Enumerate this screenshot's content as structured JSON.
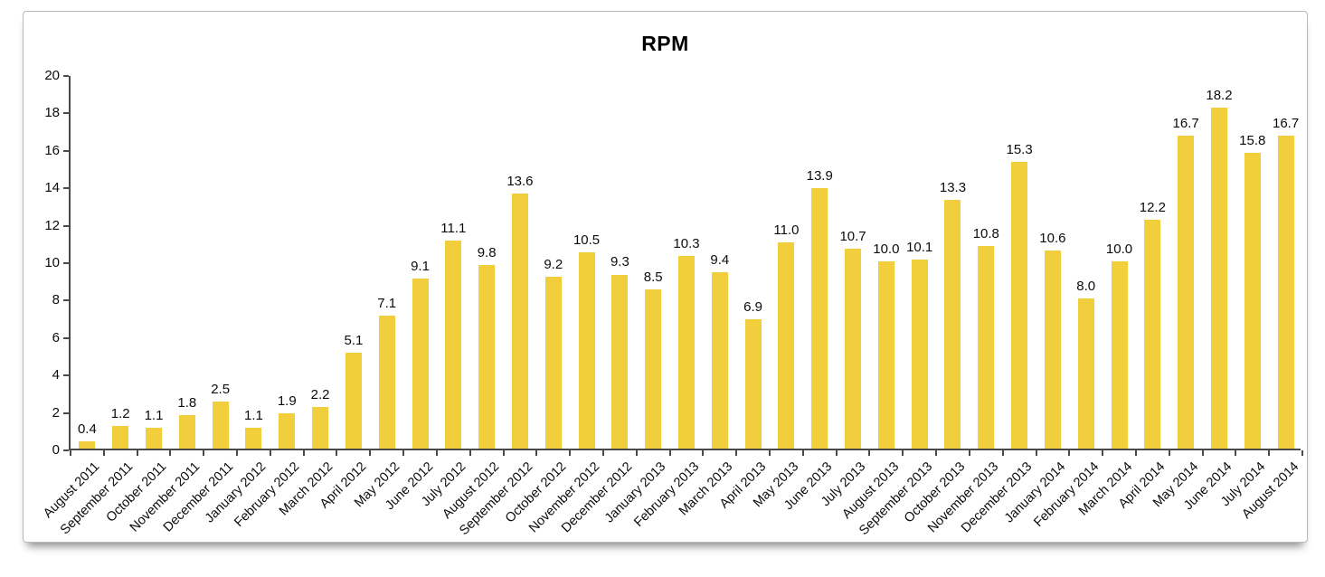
{
  "chart_data": {
    "type": "bar",
    "title": "RPM",
    "categories": [
      "August 2011",
      "September 2011",
      "October 2011",
      "November 2011",
      "December 2011",
      "January 2012",
      "February 2012",
      "March 2012",
      "April 2012",
      "May 2012",
      "June 2012",
      "July 2012",
      "August 2012",
      "September 2012",
      "October 2012",
      "November 2012",
      "December 2012",
      "January 2013",
      "February 2013",
      "March 2013",
      "April 2013",
      "May 2013",
      "June 2013",
      "July 2013",
      "August 2013",
      "September 2013",
      "October 2013",
      "November 2013",
      "December 2013",
      "January 2014",
      "February 2014",
      "March 2014",
      "April 2014",
      "May 2014",
      "June 2014",
      "July 2014",
      "August 2014"
    ],
    "values": [
      0.4,
      1.2,
      1.1,
      1.8,
      2.5,
      1.1,
      1.9,
      2.2,
      5.1,
      7.1,
      9.1,
      11.1,
      9.8,
      13.6,
      9.2,
      10.5,
      9.3,
      8.5,
      10.3,
      9.4,
      6.9,
      11.0,
      13.9,
      10.7,
      10.0,
      10.1,
      13.3,
      10.8,
      15.3,
      10.6,
      8.0,
      10.0,
      12.2,
      16.7,
      18.2,
      15.8,
      16.7
    ],
    "xlabel": "",
    "ylabel": "",
    "ylim": [
      0,
      20
    ],
    "ytick_step": 2,
    "bar_color": "#F1CE3B",
    "axis_color": "#4a4a4a",
    "grid": false,
    "legend_position": "none"
  }
}
